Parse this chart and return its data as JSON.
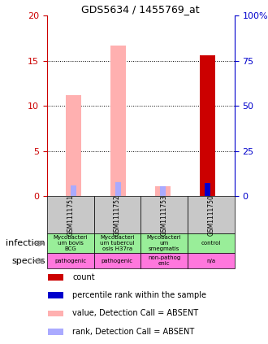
{
  "title": "GDS5634 / 1455769_at",
  "samples": [
    "GSM1111751",
    "GSM1111752",
    "GSM1111753",
    "GSM1111750"
  ],
  "ylim_left": [
    0,
    20
  ],
  "ylim_right": [
    0,
    100
  ],
  "yticks_left": [
    0,
    5,
    10,
    15,
    20
  ],
  "yticks_right": [
    0,
    25,
    50,
    75,
    100
  ],
  "ytick_labels_right": [
    "0",
    "25",
    "50",
    "75",
    "100%"
  ],
  "bars": {
    "pink_value": [
      11.2,
      16.7,
      1.1,
      0.0
    ],
    "blue_rank_absent": [
      5.7,
      7.6,
      5.3,
      0.0
    ],
    "red_count": [
      0.0,
      0.0,
      0.0,
      15.6
    ],
    "blue_rank_present": [
      0.0,
      0.0,
      0.0,
      7.2
    ]
  },
  "infection_labels": [
    "Mycobacteri\num bovis\nBCG",
    "Mycobacteri\num tubercul\nosis H37ra",
    "Mycobacteri\num\nsmegmatis",
    "control"
  ],
  "species_labels": [
    "pathogenic",
    "pathogenic",
    "non-pathog\nenic",
    "n/a"
  ],
  "sample_bg_color": "#c8c8c8",
  "infection_bg_color": "#99ee99",
  "species_bg_color": "#ff77dd",
  "legend_items": [
    {
      "color": "#cc0000",
      "label": "count"
    },
    {
      "color": "#0000cc",
      "label": "percentile rank within the sample"
    },
    {
      "color": "#ffb0b0",
      "label": "value, Detection Call = ABSENT"
    },
    {
      "color": "#aaaaff",
      "label": "rank, Detection Call = ABSENT"
    }
  ],
  "bar_width": 0.35,
  "rank_bar_width": 0.12,
  "left_tick_color": "#cc0000",
  "right_tick_color": "#0000cc",
  "grid_lines": [
    5,
    10,
    15
  ]
}
